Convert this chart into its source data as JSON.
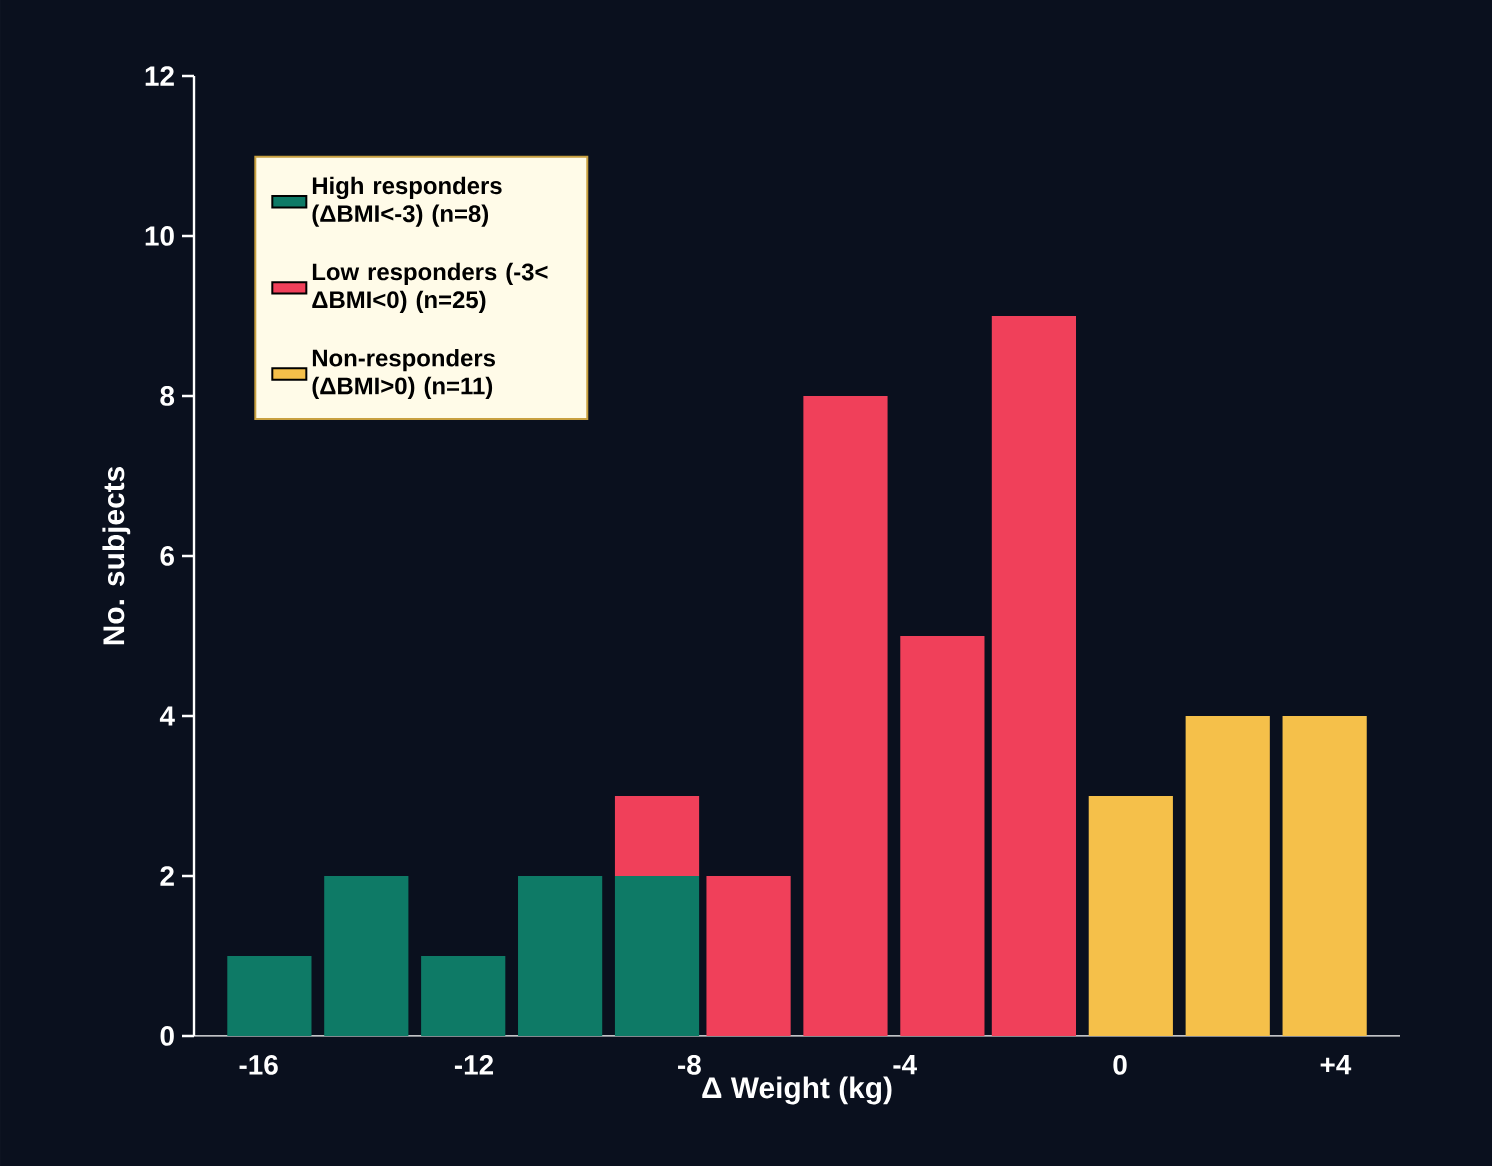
{
  "chart_data": {
    "type": "bar",
    "stacked": true,
    "x": [
      -15.8,
      -14.0,
      -12.2,
      -10.4,
      -8.6,
      -6.9,
      -5.1,
      -3.3,
      -1.6,
      0.2,
      2.0,
      3.8
    ],
    "xlim": [
      -17.2,
      5.2
    ],
    "xticks": [
      -16,
      -12,
      -8,
      -4,
      0,
      {
        "value": 4,
        "label": "+4"
      }
    ],
    "ylim": [
      0,
      12
    ],
    "yticks": [
      0,
      2,
      4,
      6,
      8,
      10,
      12
    ],
    "xlabel": "Δ Weight (kg)",
    "ylabel": "No. subjects",
    "legend": "top left",
    "series": [
      {
        "name": "High responders (ΔBMI<-3) (n=8)",
        "color": "#0e7a66",
        "values": [
          1,
          2,
          1,
          2,
          2,
          null,
          null,
          null,
          null,
          null,
          null,
          null
        ]
      },
      {
        "name": "Low responders (-3< ΔBMI<0) (n=25)",
        "color": "#f0405a",
        "values": [
          null,
          null,
          null,
          null,
          1,
          2,
          8,
          5,
          9,
          null,
          null,
          null
        ]
      },
      {
        "name": "Non-responders (ΔBMI>0) (n=11)",
        "color": "#f5c04a",
        "values": [
          null,
          null,
          null,
          null,
          null,
          null,
          null,
          null,
          null,
          3,
          4,
          4
        ]
      }
    ]
  }
}
